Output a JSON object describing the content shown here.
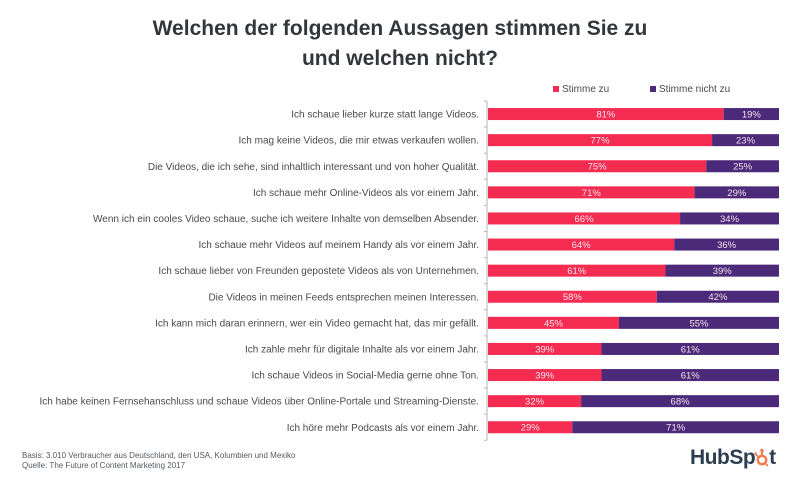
{
  "header": {
    "title_line1": "Welchen der folgenden Aussagen stimmen Sie zu",
    "title_line2": "und welchen nicht?"
  },
  "colors": {
    "agree": "#f42c52",
    "disagree": "#4b2a7a",
    "axis": "#b5b5b5"
  },
  "chart_data": {
    "type": "bar",
    "orientation": "horizontal",
    "stacked": true,
    "title": "Welchen der folgenden Aussagen stimmen Sie zu und welchen nicht?",
    "xlabel": "",
    "ylabel": "",
    "xlim": [
      0,
      100
    ],
    "grid": false,
    "legend_position": "top-right",
    "categories": [
      "Ich schaue lieber kurze statt lange Videos.",
      "Ich mag keine Videos, die mir etwas verkaufen wollen.",
      "Die Videos, die ich sehe, sind inhaltlich interessant und von hoher Qualität.",
      "Ich schaue mehr Online-Videos als vor einem Jahr.",
      "Wenn ich ein cooles Video schaue, suche ich weitere Inhalte von demselben Absender.",
      "Ich schaue mehr Videos auf meinem Handy als vor einem Jahr.",
      "Ich schaue lieber von Freunden gepostete Videos als von Unternehmen.",
      "Die Videos in meinen Feeds entsprechen meinen Interessen.",
      "Ich kann mich daran erinnern, wer ein Video gemacht hat, das mir gefällt.",
      "Ich zahle mehr für digitale Inhalte als vor einem Jahr.",
      "Ich schaue Videos in Social-Media gerne ohne Ton.",
      "Ich habe keinen Fernsehanschluss und schaue Videos über Online-Portale und Streaming-Dienste.",
      "Ich höre mehr Podcasts als vor einem Jahr."
    ],
    "series": [
      {
        "name": "Stimme zu",
        "color": "#f42c52",
        "values": [
          81,
          77,
          75,
          71,
          66,
          64,
          61,
          58,
          45,
          39,
          39,
          32,
          29
        ]
      },
      {
        "name": "Stimme nicht zu",
        "color": "#4b2a7a",
        "values": [
          19,
          23,
          25,
          29,
          34,
          36,
          39,
          42,
          55,
          61,
          61,
          68,
          71
        ]
      }
    ],
    "value_suffix": "%"
  },
  "legend": {
    "agree_label": "Stimme zu",
    "disagree_label": "Stimme nicht zu"
  },
  "footer": {
    "basis": "Basis: 3.010 Verbraucher aus Deutschland, den USA, Kolumbien und Mexiko",
    "source": "Quelle: The Future of Content Marketing 2017"
  },
  "logo": {
    "text_left": "HubSp",
    "text_right": "t",
    "icon": "sprocket-icon"
  }
}
